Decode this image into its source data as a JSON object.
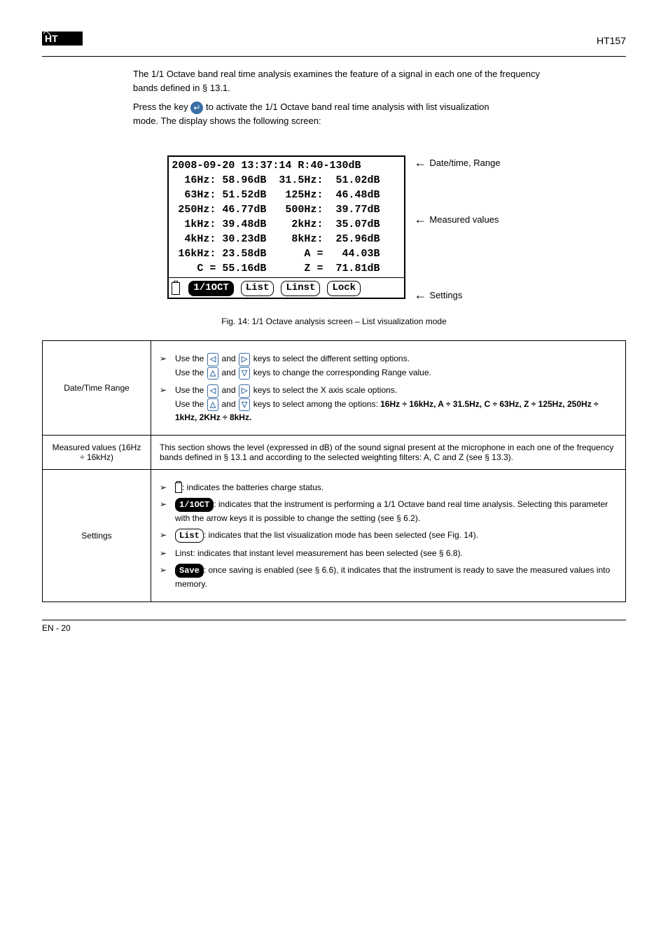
{
  "header": {
    "model": "HT157"
  },
  "intro": {
    "line1": "The 1/1 Octave band real time analysis examines the feature of a signal in each one of the frequency bands defined in § 13.1.",
    "line2_part1": "Press the key ",
    "line2_part2": " to activate the 1/1 Octave band real time analysis with list visualization ",
    "line2_part3": "mode. The display shows the following screen:",
    "enter_symbol": "↵"
  },
  "lcd": {
    "line0": "2008-09-20 13:37:14 R:40-130dB",
    "rows": [
      {
        "l_freq": "16Hz:",
        "l_val": "58.96dB",
        "r_freq": "31.5Hz:",
        "r_val": "51.02dB"
      },
      {
        "l_freq": "63Hz:",
        "l_val": "51.52dB",
        "r_freq": "125Hz:",
        "r_val": "46.48dB"
      },
      {
        "l_freq": "250Hz:",
        "l_val": "46.77dB",
        "r_freq": "500Hz:",
        "r_val": "39.77dB"
      },
      {
        "l_freq": "1kHz:",
        "l_val": "39.48dB",
        "r_freq": "2kHz:",
        "r_val": "35.07dB"
      },
      {
        "l_freq": "4kHz:",
        "l_val": "30.23dB",
        "r_freq": "8kHz:",
        "r_val": "25.96dB"
      },
      {
        "l_freq": "16kHz:",
        "l_val": "23.58dB",
        "r_freq": "A =",
        "r_val": "44.03B"
      },
      {
        "l_freq": "C =",
        "l_val": "55.16dB",
        "r_freq": "Z =",
        "r_val": "71.81dB"
      }
    ],
    "bottom": {
      "tag1": "1/1OCT",
      "tag2": "List",
      "tag3": "Linst",
      "tag4": "Lock"
    },
    "annot": {
      "top": " Date/time, Range",
      "mid": " Measured values",
      "bot": " Settings"
    }
  },
  "figcaption": "Fig. 14: 1/1 Octave analysis screen – List visualization mode",
  "table": {
    "row1_label": "Date/Time Range",
    "row1_li1_a": "Use the ",
    "row1_li1_b": " and ",
    "row1_li1_c": " keys to select the different setting options.",
    "row1_li1_d": "Use the ",
    "row1_li1_e": " keys to change the corresponding Range value.",
    "row1_li2_a": "Use the ",
    "row1_li2_b": " keys to select the X axis scale options.",
    "row1_li2_c": "Use the ",
    "row1_li2_d": " keys to select among the options: ",
    "row1_li2_opts": "16Hz ÷ 16kHz, A ÷ 31.5Hz, C ÷ 63Hz, Z ÷ 125Hz, 250Hz ÷ 1kHz, 2KHz ÷ 8kHz.",
    "row2_label": "Measured values (16Hz ÷ 16kHz)",
    "row2_text": "This section shows the level (expressed in dB) of the sound signal present at the microphone in each one of the frequency bands defined in § 13.1 and according to the selected weighting filters: A, C and Z (see § 13.3).",
    "row3_label": "Settings",
    "row3_li1_a": ": indicates the batteries charge status.",
    "row3_li2_a": ": indicates that the instrument is performing a 1/1 Octave band real time analysis. Selecting this parameter with the arrow keys it is possible to change the setting (see § 6.2).",
    "row3_li3_a": ": indicates that the list visualization mode has been selected (see Fig. 14).",
    "row3_li4_a": "Linst: indicates that instant level measurement has been selected (see § 6.8).",
    "row3_li4_a_prefix_is_icon": false,
    "row3_li5_a": ": once saving is enabled (see § 6.6), it indicates that the instrument is ready to save the measured values into memory.",
    "tag_1_1oct": "1/1OCT",
    "tag_list": "List",
    "tag_save": "Save"
  },
  "footer": {
    "left": "EN - 20",
    "right": ""
  }
}
